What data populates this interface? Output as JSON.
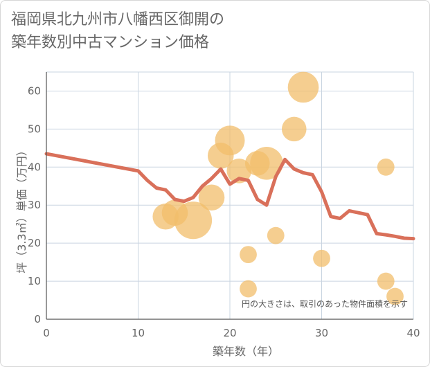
{
  "title": "福岡県北九州市八幡西区御開の\n築年数別中古マンション価格",
  "chart_data": {
    "type": "scatter",
    "xlabel": "築年数（年）",
    "ylabel": "坪（3.3㎡）単価（万円）",
    "xlim": [
      0,
      40
    ],
    "ylim": [
      0,
      65
    ],
    "x_ticks": [
      0,
      10,
      20,
      30,
      40
    ],
    "y_ticks": [
      0,
      10,
      20,
      30,
      40,
      50,
      60
    ],
    "note": "円の大きさは、取引のあった物件面積を示す",
    "colors": {
      "bubble": "#f2bd6b",
      "line": "#d9705a",
      "grid": "#c9d4e0",
      "axis": "#555555"
    },
    "bubbles": [
      {
        "x": 13,
        "y": 27,
        "size": 70
      },
      {
        "x": 14,
        "y": 28,
        "size": 70
      },
      {
        "x": 16,
        "y": 26,
        "size": 180
      },
      {
        "x": 18,
        "y": 32,
        "size": 70
      },
      {
        "x": 19,
        "y": 43,
        "size": 70
      },
      {
        "x": 20,
        "y": 47,
        "size": 100
      },
      {
        "x": 21,
        "y": 39,
        "size": 60
      },
      {
        "x": 22,
        "y": 17,
        "size": 20
      },
      {
        "x": 22,
        "y": 8,
        "size": 20
      },
      {
        "x": 23,
        "y": 41,
        "size": 60
      },
      {
        "x": 24,
        "y": 41,
        "size": 130
      },
      {
        "x": 25,
        "y": 22,
        "size": 20
      },
      {
        "x": 27,
        "y": 50,
        "size": 60
      },
      {
        "x": 28,
        "y": 61,
        "size": 110
      },
      {
        "x": 30,
        "y": 16,
        "size": 20
      },
      {
        "x": 37,
        "y": 40,
        "size": 20
      },
      {
        "x": 37,
        "y": 10,
        "size": 20
      },
      {
        "x": 38,
        "y": 6,
        "size": 20
      }
    ],
    "trend": {
      "x": [
        0,
        10,
        11,
        12,
        13,
        14,
        15,
        16,
        17,
        18,
        19,
        20,
        21,
        22,
        23,
        24,
        25,
        26,
        27,
        28,
        29,
        30,
        31,
        32,
        33,
        34,
        35,
        36,
        37,
        38,
        39,
        40
      ],
      "y": [
        43.5,
        39,
        36.5,
        34.5,
        34,
        31.5,
        31,
        32,
        35,
        37,
        39.5,
        35.5,
        37,
        36.5,
        31.5,
        30,
        37.5,
        42,
        39.5,
        38.5,
        38,
        33.5,
        27,
        26.5,
        28.5,
        28,
        27.5,
        22.5,
        22.2,
        21.8,
        21.3,
        21.2
      ]
    }
  }
}
